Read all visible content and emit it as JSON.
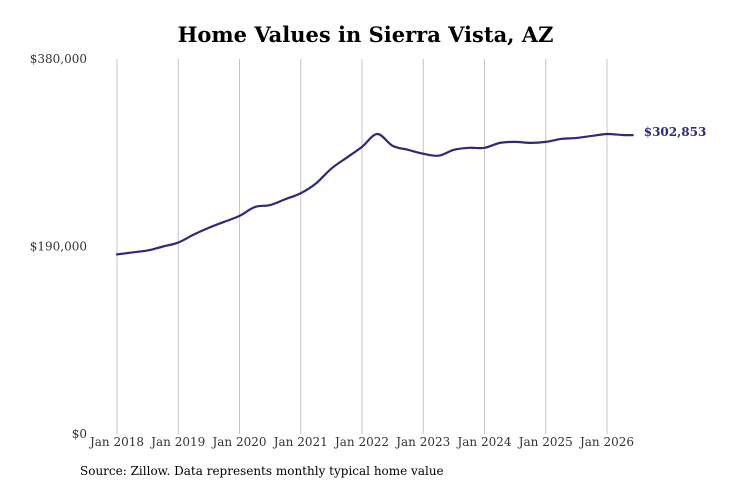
{
  "chart_data": {
    "type": "line",
    "title": "Home Values in Sierra Vista, AZ",
    "xlabel": "",
    "ylabel": "",
    "ylim": [
      0,
      380000
    ],
    "y_ticks": [
      {
        "value": 0,
        "label": "$0"
      },
      {
        "value": 190000,
        "label": "$190,000"
      },
      {
        "value": 380000,
        "label": "$380,000"
      }
    ],
    "x_ticks": [
      {
        "value": 2018.0,
        "label": "Jan 2018"
      },
      {
        "value": 2019.0,
        "label": "Jan 2019"
      },
      {
        "value": 2020.0,
        "label": "Jan 2020"
      },
      {
        "value": 2021.0,
        "label": "Jan 2021"
      },
      {
        "value": 2022.0,
        "label": "Jan 2022"
      },
      {
        "value": 2023.0,
        "label": "Jan 2023"
      },
      {
        "value": 2024.0,
        "label": "Jan 2024"
      },
      {
        "value": 2025.0,
        "label": "Jan 2025"
      },
      {
        "value": 2026.0,
        "label": "Jan 2026"
      }
    ],
    "grid": "vertical",
    "line_color": "#2e2a7a",
    "end_label": "$302,853",
    "series": [
      {
        "x": [
          2018.0,
          2018.25,
          2018.5,
          2018.75,
          2019.0,
          2019.25,
          2019.5,
          2019.75,
          2020.0,
          2020.25,
          2020.5,
          2020.75,
          2021.0,
          2021.25,
          2021.5,
          2021.75,
          2022.0,
          2022.25,
          2022.5,
          2022.75,
          2023.0,
          2023.25,
          2023.5,
          2023.75,
          2024.0,
          2024.25,
          2024.5,
          2024.75,
          2025.0,
          2025.25,
          2025.5,
          2025.75,
          2026.0,
          2026.25,
          2026.42
        ],
        "values": [
          182000,
          184000,
          186000,
          190000,
          194000,
          202000,
          209000,
          215000,
          221000,
          230000,
          232000,
          238000,
          244000,
          254000,
          269000,
          280000,
          291000,
          304000,
          292000,
          288000,
          284000,
          282000,
          288000,
          290000,
          290000,
          295000,
          296000,
          295000,
          296000,
          299000,
          300000,
          302000,
          304000,
          303000,
          302853
        ]
      }
    ]
  },
  "source": "Source: Zillow. Data represents monthly typical home value"
}
